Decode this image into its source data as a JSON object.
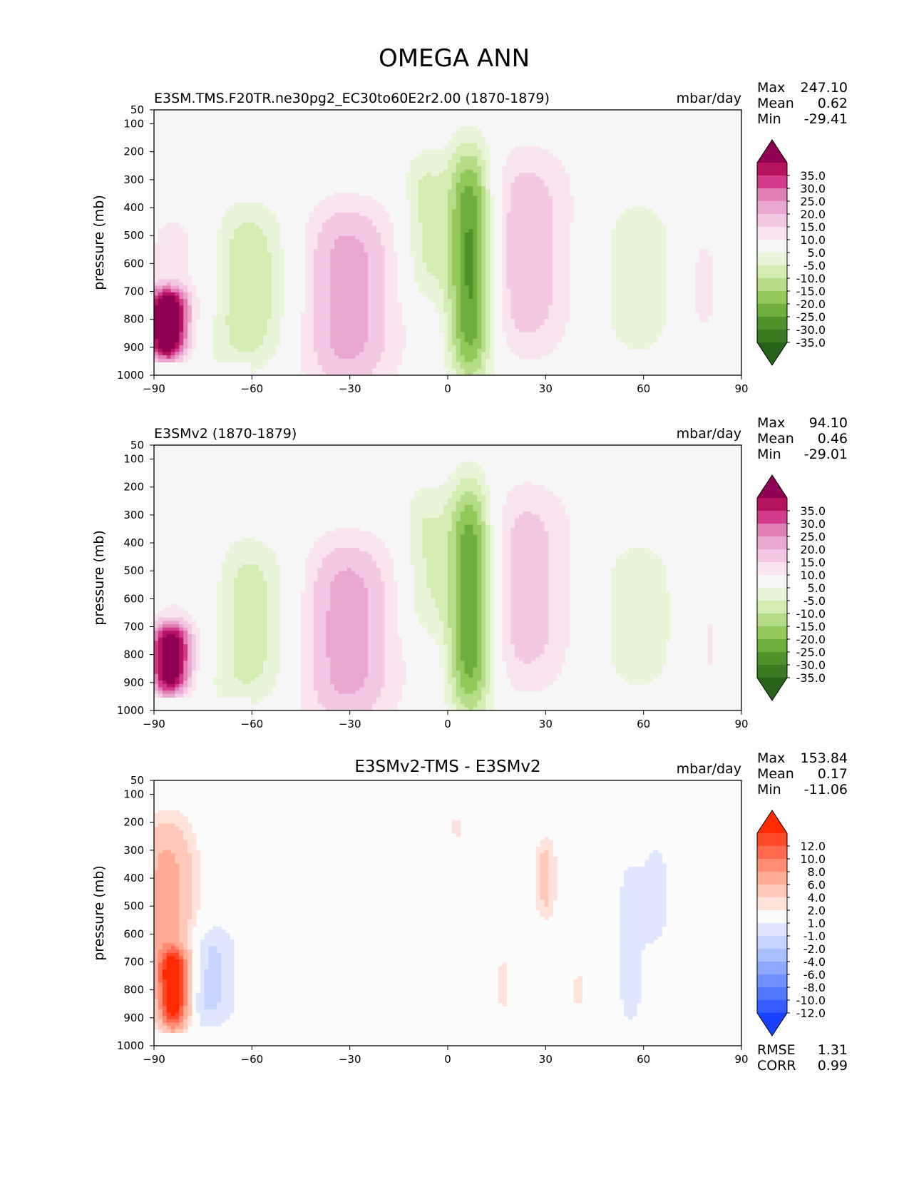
{
  "figure_title": "OMEGA ANN",
  "chart_data": [
    {
      "type": "heatmap",
      "title": "E3SM.TMS.F20TR.ne30pg2_EC30to60E2r2.00 (1870-1879)",
      "units": "mbar/day",
      "xlabel": "",
      "ylabel": "pressure (mb)",
      "xlim": [
        -90,
        90
      ],
      "ylim": [
        1000,
        50
      ],
      "xticks": [
        -90,
        -60,
        -30,
        0,
        30,
        60,
        90
      ],
      "xtick_labels": [
        "−90",
        "−60",
        "−30",
        "0",
        "30",
        "60",
        "90"
      ],
      "yticks": [
        50,
        100,
        200,
        300,
        400,
        500,
        600,
        700,
        800,
        900,
        1000
      ],
      "stats": {
        "max_label": "Max",
        "max": "247.10",
        "mean_label": "Mean",
        "mean": "0.62",
        "min_label": "Min",
        "min": "-29.41"
      },
      "colorbar": {
        "labels": [
          "35.0",
          "30.0",
          "25.0",
          "20.0",
          "15.0",
          "10.0",
          "5.0",
          "-5.0",
          "-10.0",
          "-15.0",
          "-20.0",
          "-25.0",
          "-30.0",
          "-35.0"
        ],
        "colors": [
          "#8e0152",
          "#b8135f",
          "#d33b8b",
          "#e07fb4",
          "#eaa6cf",
          "#f2c8e2",
          "#f9e4f0",
          "#f6f6f6",
          "#e9f5d8",
          "#d2ecb2",
          "#b5dc86",
          "#92c85a",
          "#6fad3c",
          "#4f912b",
          "#3b7a21",
          "#276419"
        ]
      },
      "features": [
        {
          "lat": -31,
          "p": 720,
          "value": 18,
          "lat_width": 16,
          "p_width": 700
        },
        {
          "lat": 24,
          "p": 560,
          "value": 14,
          "lat_width": 15,
          "p_width": 760
        },
        {
          "lat": 7,
          "p": 600,
          "value": -34,
          "lat_width": 7,
          "p_width": 850
        },
        {
          "lat": -7,
          "p": 470,
          "value": -12,
          "lat_width": 7,
          "p_width": 560
        },
        {
          "lat": -62,
          "p": 680,
          "value": -16,
          "lat_width": 15,
          "p_width": 600
        },
        {
          "lat": 58,
          "p": 650,
          "value": -8,
          "lat_width": 14,
          "p_width": 620
        },
        {
          "lat": 78,
          "p": 680,
          "value": 7,
          "lat_width": 6,
          "p_width": 420
        },
        {
          "lat": -80,
          "p": 640,
          "value": 9,
          "lat_width": 14,
          "p_width": 520
        },
        {
          "lat": -86,
          "p": 820,
          "value": 45,
          "lat_width": 6,
          "p_width": 260
        }
      ]
    },
    {
      "type": "heatmap",
      "title": "E3SMv2 (1870-1879)",
      "units": "mbar/day",
      "xlabel": "",
      "ylabel": "pressure (mb)",
      "xlim": [
        -90,
        90
      ],
      "ylim": [
        1000,
        50
      ],
      "xticks": [
        -90,
        -60,
        -30,
        0,
        30,
        60,
        90
      ],
      "xtick_labels": [
        "−90",
        "−60",
        "−30",
        "0",
        "30",
        "60",
        "90"
      ],
      "yticks": [
        50,
        100,
        200,
        300,
        400,
        500,
        600,
        700,
        800,
        900,
        1000
      ],
      "stats": {
        "max_label": "Max",
        "max": "94.10",
        "mean_label": "Mean",
        "mean": "0.46",
        "min_label": "Min",
        "min": "-29.01"
      },
      "colorbar": {
        "labels": [
          "35.0",
          "30.0",
          "25.0",
          "20.0",
          "15.0",
          "10.0",
          "5.0",
          "-5.0",
          "-10.0",
          "-15.0",
          "-20.0",
          "-25.0",
          "-30.0",
          "-35.0"
        ],
        "colors": [
          "#8e0152",
          "#b8135f",
          "#d33b8b",
          "#e07fb4",
          "#eaa6cf",
          "#f2c8e2",
          "#f9e4f0",
          "#f6f6f6",
          "#e9f5d8",
          "#d2ecb2",
          "#b5dc86",
          "#92c85a",
          "#6fad3c",
          "#4f912b",
          "#3b7a21",
          "#276419"
        ]
      },
      "features": [
        {
          "lat": -31,
          "p": 720,
          "value": 18,
          "lat_width": 16,
          "p_width": 700
        },
        {
          "lat": 24,
          "p": 560,
          "value": 13,
          "lat_width": 15,
          "p_width": 760
        },
        {
          "lat": 7,
          "p": 600,
          "value": -33,
          "lat_width": 7,
          "p_width": 850
        },
        {
          "lat": -7,
          "p": 470,
          "value": -11,
          "lat_width": 7,
          "p_width": 560
        },
        {
          "lat": -62,
          "p": 680,
          "value": -15,
          "lat_width": 15,
          "p_width": 600
        },
        {
          "lat": 58,
          "p": 660,
          "value": -8,
          "lat_width": 14,
          "p_width": 600
        },
        {
          "lat": 80,
          "p": 760,
          "value": 6,
          "lat_width": 5,
          "p_width": 300
        },
        {
          "lat": -78,
          "p": 640,
          "value": 8,
          "lat_width": 14,
          "p_width": 520
        },
        {
          "lat": -85,
          "p": 820,
          "value": 40,
          "lat_width": 6,
          "p_width": 260
        }
      ]
    },
    {
      "type": "heatmap",
      "title": "E3SMv2-TMS - E3SMv2",
      "units": "mbar/day",
      "xlabel": "",
      "ylabel": "pressure (mb)",
      "xlim": [
        -90,
        90
      ],
      "ylim": [
        1000,
        50
      ],
      "xticks": [
        -90,
        -60,
        -30,
        0,
        30,
        60,
        90
      ],
      "xtick_labels": [
        "−90",
        "−60",
        "−30",
        "0",
        "30",
        "60",
        "90"
      ],
      "yticks": [
        50,
        100,
        200,
        300,
        400,
        500,
        600,
        700,
        800,
        900,
        1000
      ],
      "stats": {
        "max_label": "Max",
        "max": "153.84",
        "mean_label": "Mean",
        "mean": "0.17",
        "min_label": "Min",
        "min": "-11.06",
        "rmse_label": "RMSE",
        "rmse": "1.31",
        "corr_label": "CORR",
        "corr": "0.99"
      },
      "colorbar": {
        "labels": [
          "12.0",
          "10.0",
          "8.0",
          "6.0",
          "4.0",
          "2.0",
          "1.0",
          "-1.0",
          "-2.0",
          "-4.0",
          "-6.0",
          "-8.0",
          "-10.0",
          "-12.0"
        ],
        "colors": [
          "#ff2a00",
          "#ff4a2a",
          "#ff6a4f",
          "#ff8c73",
          "#ffab96",
          "#ffc8b8",
          "#ffe3da",
          "#fbfbfb",
          "#dfe7ff",
          "#c6d4ff",
          "#aabfff",
          "#8ea8ff",
          "#7090ff",
          "#5277ff",
          "#345cff",
          "#1740ff"
        ]
      },
      "features": [
        {
          "lat": -86,
          "p": 520,
          "value": 5,
          "lat_width": 8,
          "p_width": 650
        },
        {
          "lat": -84,
          "p": 800,
          "value": 14,
          "lat_width": 4,
          "p_width": 280
        },
        {
          "lat": -73,
          "p": 750,
          "value": -2.5,
          "lat_width": 8,
          "p_width": 380
        },
        {
          "lat": 56,
          "p": 630,
          "value": -1.5,
          "lat_width": 5,
          "p_width": 680
        },
        {
          "lat": 64,
          "p": 460,
          "value": -1.5,
          "lat_width": 4,
          "p_width": 380
        },
        {
          "lat": 30,
          "p": 400,
          "value": 2.5,
          "lat_width": 3,
          "p_width": 300
        },
        {
          "lat": 3,
          "p": 220,
          "value": 1.5,
          "lat_width": 2,
          "p_width": 80
        },
        {
          "lat": 17,
          "p": 780,
          "value": 1.5,
          "lat_width": 2,
          "p_width": 200
        },
        {
          "lat": 40,
          "p": 800,
          "value": 1.5,
          "lat_width": 2,
          "p_width": 120
        }
      ]
    }
  ]
}
